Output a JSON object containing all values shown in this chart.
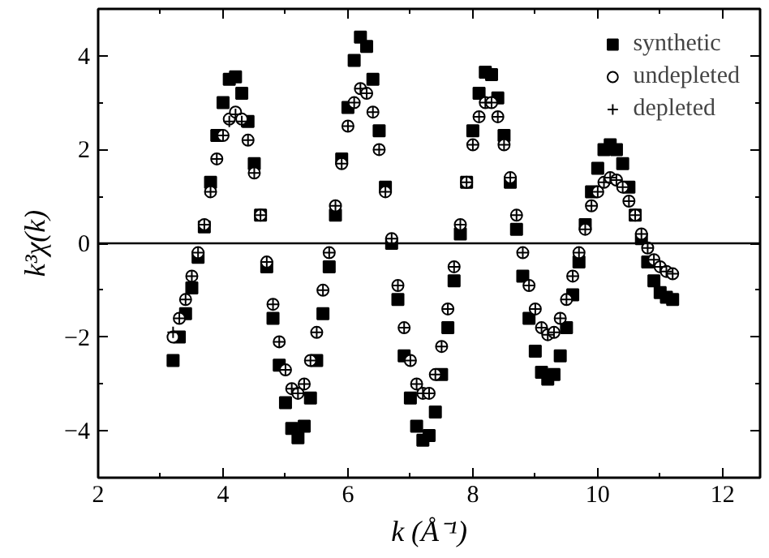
{
  "chart_data": {
    "type": "scatter",
    "xlabel": "k (Å⁻¹)",
    "ylabel": "k³χ(k)",
    "x": [
      3.2,
      3.3,
      3.4,
      3.5,
      3.6,
      3.7,
      3.8,
      3.9,
      4.0,
      4.1,
      4.2,
      4.3,
      4.4,
      4.5,
      4.6,
      4.7,
      4.8,
      4.9,
      5.0,
      5.1,
      5.2,
      5.3,
      5.4,
      5.5,
      5.6,
      5.7,
      5.8,
      5.9,
      6.0,
      6.1,
      6.2,
      6.3,
      6.4,
      6.5,
      6.6,
      6.7,
      6.8,
      6.9,
      7.0,
      7.1,
      7.2,
      7.3,
      7.4,
      7.5,
      7.6,
      7.7,
      7.8,
      7.9,
      8.0,
      8.1,
      8.2,
      8.3,
      8.4,
      8.5,
      8.6,
      8.7,
      8.8,
      8.9,
      9.0,
      9.1,
      9.2,
      9.3,
      9.4,
      9.5,
      9.6,
      9.7,
      9.8,
      9.9,
      10.0,
      10.1,
      10.2,
      10.3,
      10.4,
      10.5,
      10.6,
      10.7,
      10.8,
      10.9,
      11.0,
      11.1,
      11.2
    ],
    "series": [
      {
        "name": "synthetic",
        "color": "#000000",
        "marker": "square",
        "values": [
          -2.5,
          -2.0,
          -1.5,
          -0.95,
          -0.3,
          0.35,
          1.3,
          2.3,
          3.0,
          3.5,
          3.55,
          3.2,
          2.6,
          1.7,
          0.6,
          -0.5,
          -1.6,
          -2.6,
          -3.4,
          -3.95,
          -4.15,
          -3.9,
          -3.3,
          -2.5,
          -1.5,
          -0.5,
          0.6,
          1.8,
          2.9,
          3.9,
          4.4,
          4.2,
          3.5,
          2.4,
          1.2,
          0.0,
          -1.2,
          -2.4,
          -3.3,
          -3.9,
          -4.2,
          -4.1,
          -3.6,
          -2.8,
          -1.8,
          -0.8,
          0.2,
          1.3,
          2.4,
          3.2,
          3.65,
          3.6,
          3.1,
          2.3,
          1.3,
          0.3,
          -0.7,
          -1.6,
          -2.3,
          -2.75,
          -2.9,
          -2.8,
          -2.4,
          -1.8,
          -1.1,
          -0.4,
          0.4,
          1.1,
          1.6,
          2.0,
          2.1,
          2.0,
          1.7,
          1.2,
          0.6,
          0.1,
          -0.4,
          -0.8,
          -1.05,
          -1.15,
          -1.2
        ]
      },
      {
        "name": "undepleted",
        "color": "#000000",
        "marker": "circle",
        "values": [
          -2.0,
          -1.6,
          -1.2,
          -0.7,
          -0.2,
          0.4,
          1.1,
          1.8,
          2.3,
          2.65,
          2.8,
          2.65,
          2.2,
          1.5,
          0.6,
          -0.4,
          -1.3,
          -2.1,
          -2.7,
          -3.1,
          -3.2,
          -3.0,
          -2.5,
          -1.9,
          -1.0,
          -0.2,
          0.8,
          1.7,
          2.5,
          3.0,
          3.3,
          3.2,
          2.8,
          2.0,
          1.1,
          0.1,
          -0.9,
          -1.8,
          -2.5,
          -3.0,
          -3.2,
          -3.2,
          -2.8,
          -2.2,
          -1.4,
          -0.5,
          0.4,
          1.3,
          2.1,
          2.7,
          3.0,
          3.0,
          2.7,
          2.1,
          1.4,
          0.6,
          -0.2,
          -0.9,
          -1.4,
          -1.8,
          -1.95,
          -1.9,
          -1.6,
          -1.2,
          -0.7,
          -0.2,
          0.3,
          0.8,
          1.1,
          1.3,
          1.4,
          1.35,
          1.2,
          0.9,
          0.6,
          0.2,
          -0.1,
          -0.35,
          -0.5,
          -0.6,
          -0.65
        ]
      },
      {
        "name": "depleted",
        "color": "#000000",
        "marker": "cross",
        "values": [
          -1.9,
          -1.6,
          -1.2,
          -0.7,
          -0.2,
          0.4,
          1.1,
          1.8,
          2.3,
          2.6,
          2.75,
          2.6,
          2.2,
          1.5,
          0.6,
          -0.4,
          -1.3,
          -2.1,
          -2.7,
          -3.1,
          -3.2,
          -3.0,
          -2.5,
          -1.9,
          -1.0,
          -0.2,
          0.8,
          1.7,
          2.5,
          3.0,
          3.3,
          3.2,
          2.8,
          2.0,
          1.1,
          0.1,
          -0.9,
          -1.8,
          -2.5,
          -3.0,
          -3.2,
          -3.2,
          -2.8,
          -2.2,
          -1.4,
          -0.5,
          0.4,
          1.3,
          2.1,
          2.7,
          3.0,
          3.0,
          2.7,
          2.1,
          1.4,
          0.6,
          -0.2,
          -0.9,
          -1.4,
          -1.8,
          -1.95,
          -1.9,
          -1.6,
          -1.2,
          -0.7,
          -0.2,
          0.3,
          0.8,
          1.1,
          1.3,
          1.4,
          1.35,
          1.2,
          0.9,
          0.6,
          0.2,
          -0.1,
          -0.35,
          -0.5,
          -0.6,
          -0.65
        ]
      }
    ],
    "xlim": [
      2,
      12.6
    ],
    "xticks": [
      2,
      4,
      6,
      8,
      10,
      12
    ],
    "ylim": [
      -5,
      5
    ],
    "yticks": [
      -4,
      -2,
      0,
      2,
      4
    ],
    "ref_lines": [
      {
        "axis": "y",
        "value": 0,
        "color": "#000000"
      }
    ],
    "grid": false,
    "legend": "top right"
  }
}
